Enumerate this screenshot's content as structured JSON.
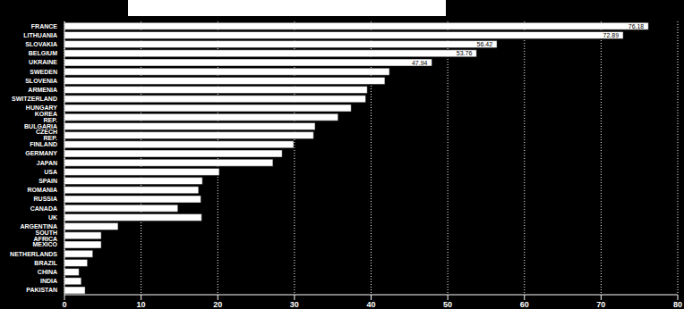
{
  "chart_data": {
    "type": "bar",
    "orientation": "horizontal",
    "categories": [
      "FRANCE",
      "LITHUANIA",
      "SLOVAKIA",
      "BELGIUM",
      "UKRAINE",
      "SWEDEN",
      "SLOVENIA",
      "ARMENIA",
      "SWITZERLAND",
      "HUNGARY",
      "KOREA REP.",
      "BULGARIA",
      "CZECH REP.",
      "FINLAND",
      "GERMANY",
      "JAPAN",
      "USA",
      "SPAIN",
      "ROMANIA",
      "RUSSIA",
      "CANADA",
      "UK",
      "ARGENTINA",
      "SOUTH AFRICA",
      "MEXICO",
      "NETHERLANDS",
      "BRAZIL",
      "CHINA",
      "INDIA",
      "PAKISTAN"
    ],
    "values": [
      76.18,
      72.89,
      56.42,
      53.76,
      47.94,
      42.4,
      41.8,
      39.5,
      39.3,
      37.4,
      35.7,
      32.7,
      32.5,
      29.9,
      28.4,
      27.2,
      20.2,
      18.0,
      17.5,
      17.8,
      14.8,
      17.9,
      7.0,
      4.8,
      4.8,
      3.7,
      3.0,
      1.9,
      2.2,
      2.7
    ],
    "value_labels": [
      "76.18",
      "72.89",
      "56.42",
      "53.76",
      "47.94",
      null,
      null,
      null,
      null,
      null,
      null,
      null,
      null,
      null,
      null,
      null,
      null,
      null,
      null,
      null,
      null,
      null,
      null,
      null,
      null,
      null,
      null,
      null,
      null,
      null
    ],
    "color": "#ffffff",
    "xlim": [
      0,
      80
    ],
    "xticks": [
      0,
      10,
      20,
      30,
      40,
      50,
      60,
      70,
      80
    ],
    "grid": true
  }
}
